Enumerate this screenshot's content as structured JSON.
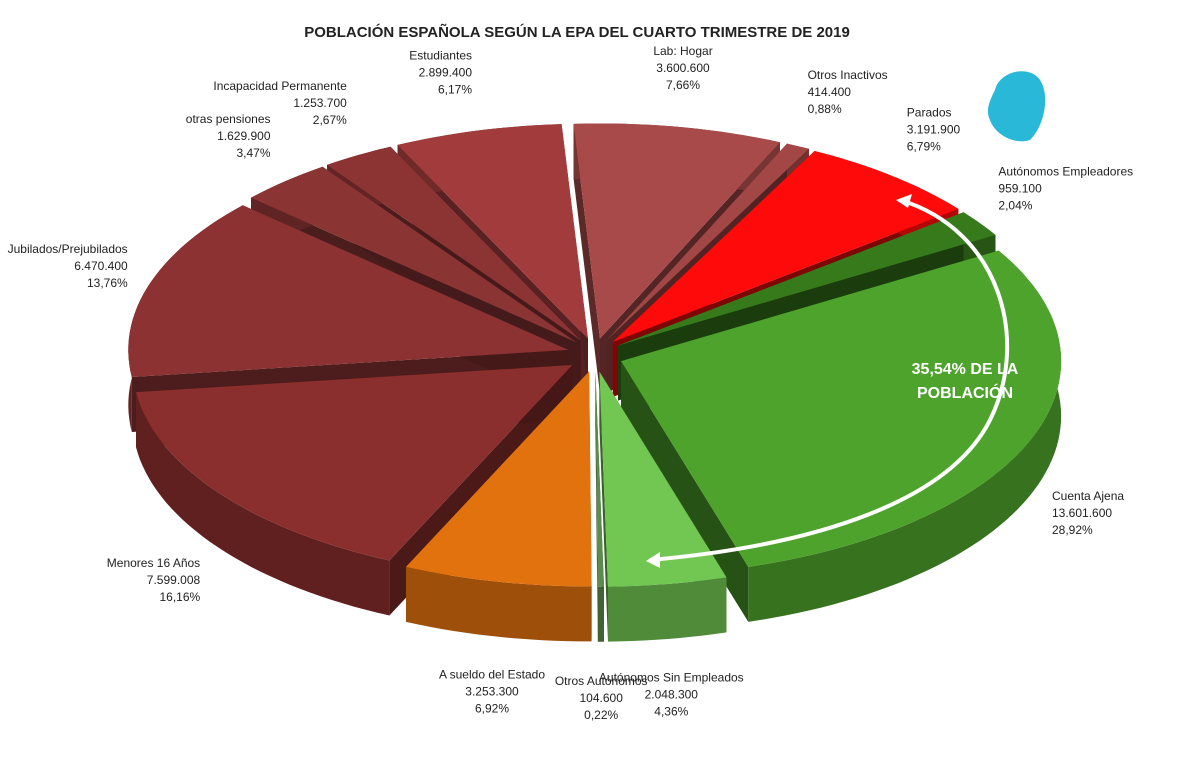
{
  "chart_data": {
    "type": "pie",
    "title": "POBLACIÓN ESPAÑOLA SEGÚN LA EPA DEL CUARTO TRIMESTRE DE 2019",
    "categories": [
      "Lab: Hogar",
      "Otros Inactivos",
      "Parados",
      "Autónomos Empleadores",
      "Cuenta Ajena",
      "Autónomos Sin Empleados",
      "Otros Autónomos",
      "A sueldo del Estado",
      "Menores 16 Años",
      "Jubilados/Prejubilados",
      "otras pensiones",
      "Incapacidad Permanente",
      "Estudiantes"
    ],
    "values": [
      3600600,
      414400,
      3191900,
      959100,
      13601600,
      2048300,
      104600,
      3253300,
      7599008,
      6470400,
      1629900,
      1253700,
      2899400
    ],
    "value_labels": [
      "3.600.600",
      "414.400",
      "3.191.900",
      "959.100",
      "13.601.600",
      "2.048.300",
      "104.600",
      "3.253.300",
      "7.599.008",
      "6.470.400",
      "1.629.900",
      "1.253.700",
      "2.899.400"
    ],
    "percent_labels": [
      "7,66%",
      "0,88%",
      "6,79%",
      "2,04%",
      "28,92%",
      "4,36%",
      "0,22%",
      "6,92%",
      "16,16%",
      "13,76%",
      "3,47%",
      "2,67%",
      "6,17%"
    ],
    "colors": [
      "#a84a4a",
      "#a24646",
      "#ff0a0a",
      "#367a1c",
      "#4ea32c",
      "#72c652",
      "#5c8c4c",
      "#e2720e",
      "#8a2e2e",
      "#8c3232",
      "#8a3434",
      "#8c3434",
      "#a23c3c"
    ],
    "annotation": [
      "35,54% DE LA",
      "POBLACIÓN"
    ]
  }
}
